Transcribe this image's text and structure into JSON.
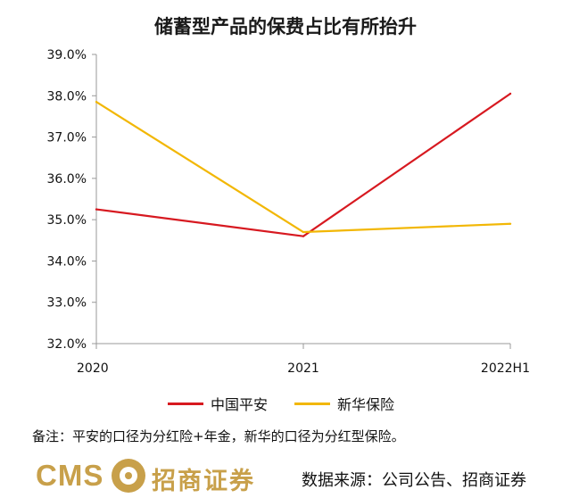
{
  "chart_data": {
    "type": "line",
    "title": "储蓄型产品的保费占比有所抬升",
    "categories": [
      "2020",
      "2021",
      "2022H1"
    ],
    "ylim": [
      32.0,
      39.0
    ],
    "yticks": [
      "32.0%",
      "33.0%",
      "34.0%",
      "35.0%",
      "36.0%",
      "37.0%",
      "38.0%",
      "39.0%"
    ],
    "grid": false,
    "legend_position": "bottom",
    "series": [
      {
        "name": "中国平安",
        "color": "#d71920",
        "values": [
          35.25,
          34.6,
          38.05
        ]
      },
      {
        "name": "新华保险",
        "color": "#f2b705",
        "values": [
          37.85,
          34.7,
          34.9
        ]
      }
    ]
  },
  "note": "备注：平安的口径为分红险+年金，新华的口径为分红型保险。",
  "footer": {
    "brand_en": "CMS",
    "brand_cn": "招商证券",
    "source": "数据来源：公司公告、招商证券"
  }
}
